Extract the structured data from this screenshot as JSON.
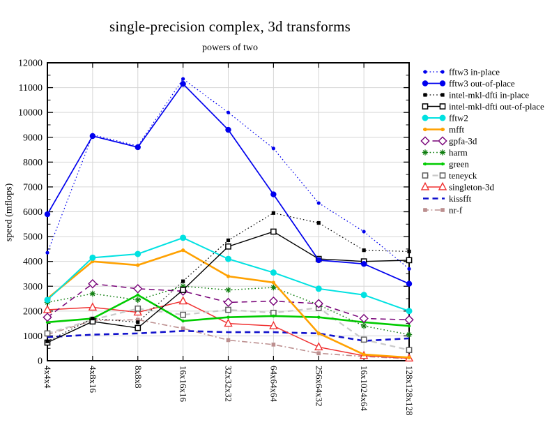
{
  "chart_data": {
    "type": "line",
    "title": "single-precision complex, 3d transforms",
    "subtitle": "powers of two",
    "xlabel": "",
    "ylabel": "speed (mflops)",
    "ylim": [
      0,
      12000
    ],
    "ytick_step": 1000,
    "yticks": [
      0,
      1000,
      2000,
      3000,
      4000,
      5000,
      6000,
      7000,
      8000,
      9000,
      10000,
      11000,
      12000
    ],
    "grid": true,
    "legend_position": "right",
    "categories": [
      "4x4x4",
      "4x8x16",
      "8x8x8",
      "16x16x16",
      "32x32x32",
      "64x64x64",
      "256x64x32",
      "16x1024x64",
      "128x128x128"
    ],
    "series": [
      {
        "name": "fftw3 in-place",
        "color": "#0000ee",
        "line": "dotted",
        "line_width": 1.2,
        "marker": "dot",
        "marker_size": 2.6,
        "values": [
          4350,
          9100,
          8650,
          11350,
          10000,
          8550,
          6350,
          5200,
          3700
        ]
      },
      {
        "name": "fftw3 out-of-place",
        "color": "#0000ee",
        "line": "solid",
        "line_width": 1.7,
        "marker": "dot",
        "marker_size": 4.2,
        "values": [
          5900,
          9050,
          8600,
          11150,
          9300,
          6700,
          4050,
          3900,
          3100
        ]
      },
      {
        "name": "intel-mkl-dfti in-place",
        "color": "#000000",
        "line": "dotted",
        "line_width": 1.2,
        "marker": "square",
        "marker_size": 2.6,
        "values": [
          780,
          1700,
          1550,
          3200,
          4850,
          5950,
          5550,
          4450,
          4400
        ]
      },
      {
        "name": "intel-mkl-dfti out-of-place",
        "color": "#000000",
        "line": "solid",
        "line_width": 1.4,
        "marker": "square-open",
        "marker_size": 3.6,
        "values": [
          730,
          1580,
          1320,
          2850,
          4600,
          5200,
          4100,
          4000,
          4050
        ]
      },
      {
        "name": "fftw2",
        "color": "#00e1e1",
        "line": "solid",
        "line_width": 2.0,
        "marker": "dot",
        "marker_size": 4.5,
        "values": [
          2450,
          4150,
          4300,
          4950,
          4100,
          3550,
          2900,
          2650,
          2000
        ]
      },
      {
        "name": "mfft",
        "color": "#ffa100",
        "line": "solid",
        "line_width": 2.6,
        "marker": "dot",
        "marker_size": 2.6,
        "values": [
          2500,
          4000,
          3850,
          4450,
          3400,
          3150,
          1100,
          250,
          130
        ]
      },
      {
        "name": "gpfa-3d",
        "color": "#770077",
        "line": "dashed",
        "line_width": 1.5,
        "marker": "diamond-open",
        "marker_size": 4.2,
        "values": [
          1750,
          3100,
          2900,
          2800,
          2350,
          2400,
          2300,
          1700,
          1650
        ]
      },
      {
        "name": "harm",
        "color": "#0e7d0e",
        "line": "dotted",
        "line_width": 1.5,
        "marker": "asterisk",
        "marker_size": 4.2,
        "values": [
          2350,
          2700,
          2450,
          3000,
          2850,
          2950,
          2250,
          1400,
          1050
        ]
      },
      {
        "name": "green",
        "color": "#00cc00",
        "line": "solid",
        "line_width": 2.6,
        "marker": "dot",
        "marker_size": 2.2,
        "values": [
          1550,
          1700,
          2650,
          1600,
          1750,
          1800,
          1750,
          1550,
          1400
        ]
      },
      {
        "name": "teneyck",
        "color": "#5f5f5f",
        "line_color": "#c9c9c9",
        "line": "dashed",
        "line_width": 2.2,
        "marker": "square-open",
        "marker_size": 3.6,
        "values": [
          1100,
          1650,
          2100,
          1850,
          2050,
          1930,
          2130,
          850,
          430
        ]
      },
      {
        "name": "singleton-3d",
        "color": "#f03030",
        "line": "solid",
        "line_width": 1.5,
        "marker": "triangle-open",
        "marker_size": 4.4,
        "values": [
          2050,
          2150,
          1950,
          2400,
          1500,
          1400,
          550,
          200,
          100
        ]
      },
      {
        "name": "kissfft",
        "color": "#1111cc",
        "line": "dashed",
        "line_width": 2.6,
        "marker": "none",
        "marker_size": 0,
        "values": [
          950,
          1050,
          1100,
          1200,
          1150,
          1150,
          1100,
          800,
          900
        ]
      },
      {
        "name": "nr-f",
        "color": "#bc8f8f",
        "line": "dashdot",
        "line_width": 1.6,
        "marker": "square",
        "marker_size": 2.8,
        "values": [
          1050,
          1620,
          1650,
          1300,
          830,
          650,
          300,
          170,
          80
        ]
      }
    ]
  }
}
